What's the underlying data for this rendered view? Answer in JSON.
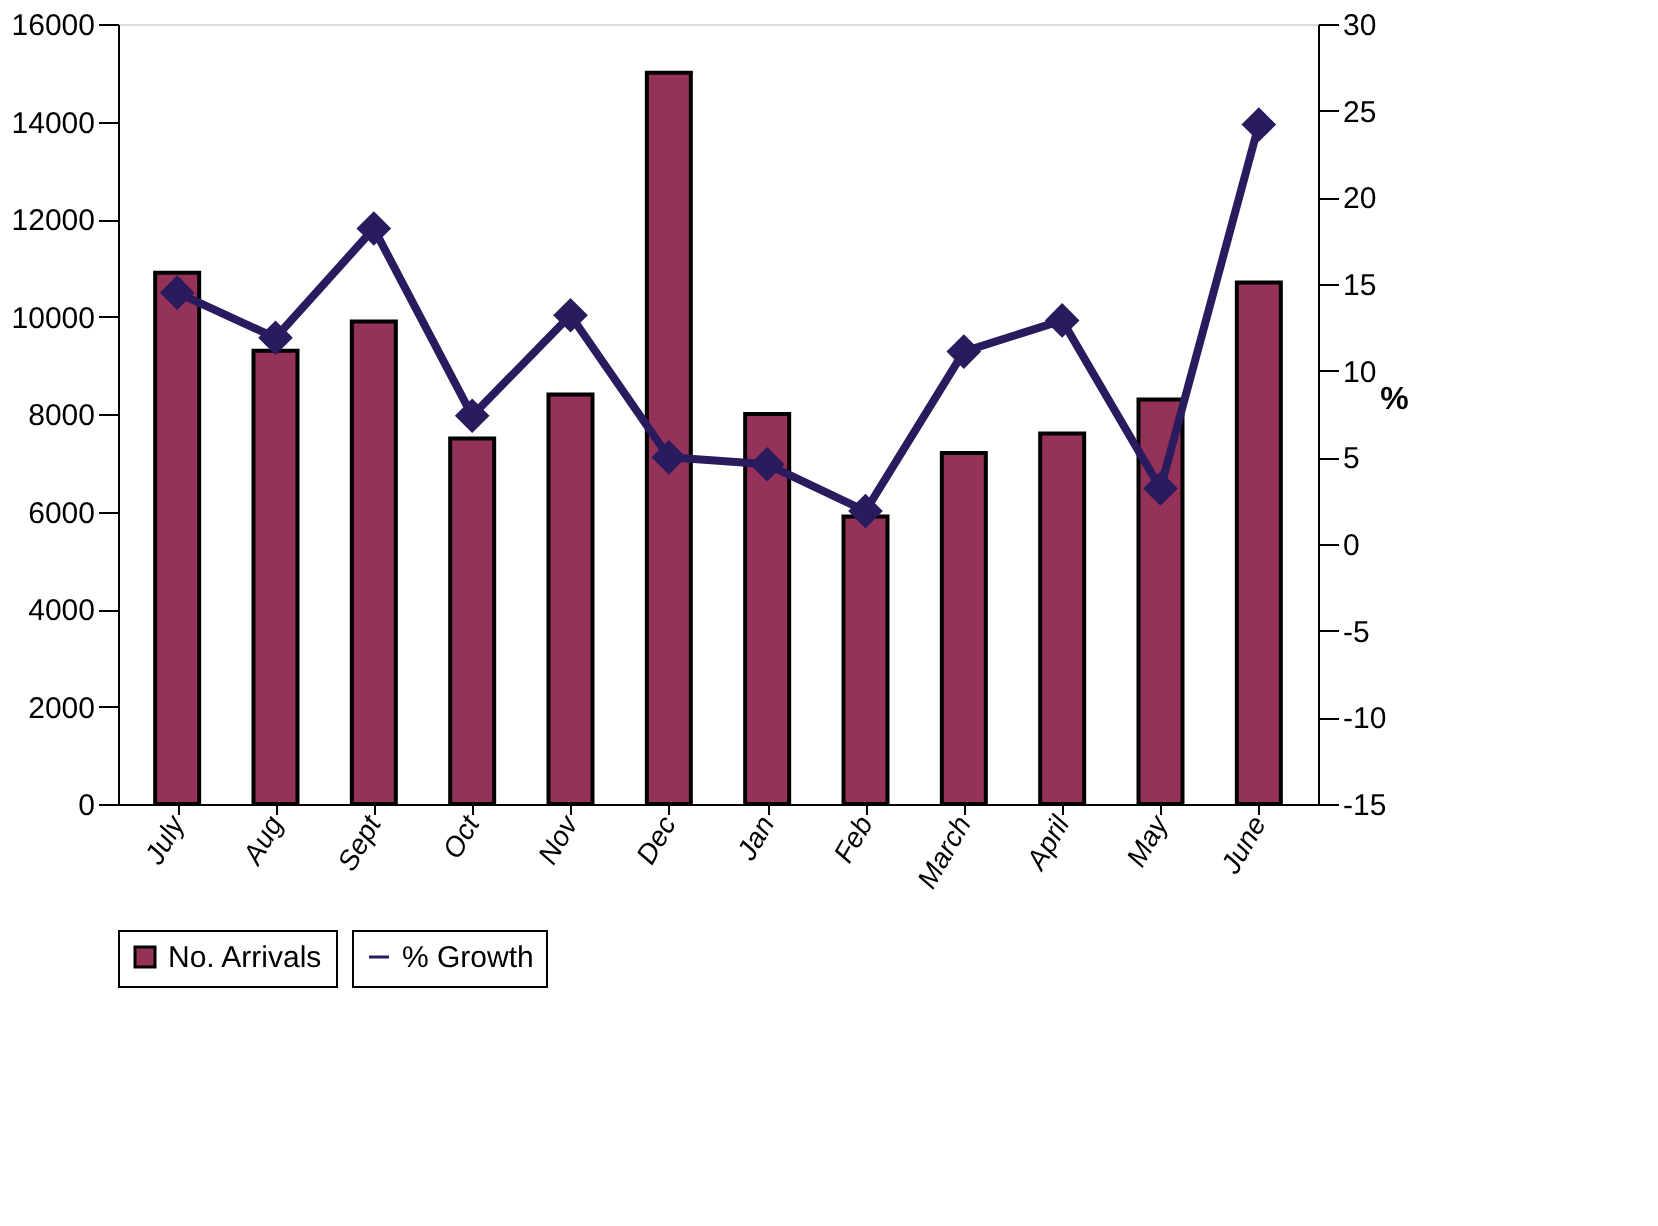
{
  "chart_data": {
    "type": "bar",
    "categories": [
      "July",
      "Aug",
      "Sept",
      "Oct",
      "Nov",
      "Dec",
      "Jan",
      "Feb",
      "March",
      "April",
      "May",
      "June"
    ],
    "series": [
      {
        "name": "No. Arrivals",
        "color": "#943259",
        "values": [
          10900,
          9300,
          9900,
          7500,
          8400,
          15000,
          8000,
          5900,
          7200,
          7600,
          8300,
          10700
        ]
      },
      {
        "name": "% Growth",
        "type": "line",
        "axis": "y2",
        "color": "#2a1a5e",
        "marker": "diamond",
        "values": [
          14.5,
          11.9,
          18.2,
          7.4,
          13.2,
          5.0,
          4.6,
          1.9,
          11.1,
          12.9,
          3.2,
          24.2
        ]
      }
    ],
    "ylim": [
      0,
      16000
    ],
    "yticks": [
      0,
      2000,
      4000,
      6000,
      8000,
      10000,
      12000,
      14000,
      16000
    ],
    "y2lim": [
      -15,
      30
    ],
    "y2ticks": [
      -15,
      -10,
      -5,
      0,
      5,
      10,
      15,
      20,
      25,
      30
    ],
    "y2label": "%",
    "grid": false,
    "legend": "bottom"
  }
}
